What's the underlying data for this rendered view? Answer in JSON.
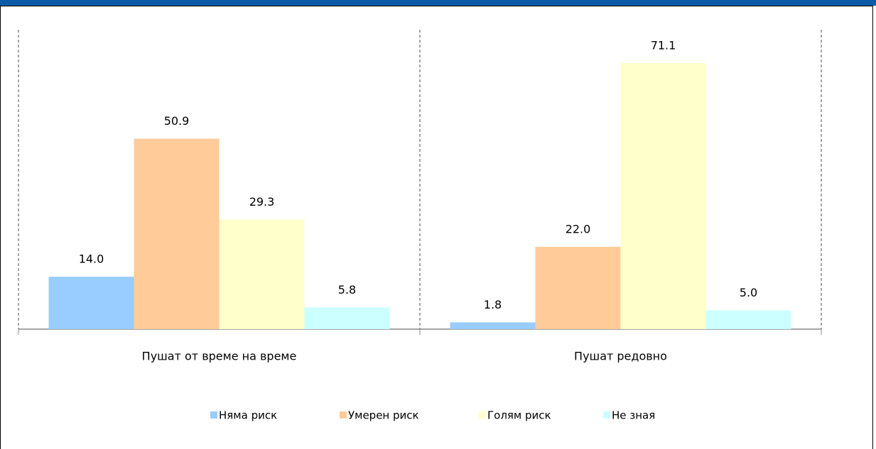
{
  "chart_data": {
    "type": "bar",
    "categories": [
      "Пушат от време на време",
      "Пушат редовно"
    ],
    "series": [
      {
        "name": "Няма риск",
        "color": "#99ccff",
        "values": [
          14.0,
          1.8
        ],
        "value_labels": [
          "14.0",
          "1.8"
        ]
      },
      {
        "name": "Умерен риск",
        "color": "#ffcc99",
        "values": [
          50.9,
          22.0
        ],
        "value_labels": [
          "50.9",
          "22.0"
        ]
      },
      {
        "name": "Голям риск",
        "color": "#ffffcc",
        "values": [
          29.3,
          71.1
        ],
        "value_labels": [
          "29.3",
          "71.1"
        ]
      },
      {
        "name": "Не зная",
        "color": "#ccffff",
        "values": [
          5.8,
          5.0
        ],
        "value_labels": [
          "5.8",
          "5.0"
        ]
      }
    ],
    "ylim": [
      0,
      80
    ],
    "legend": "bottom"
  }
}
